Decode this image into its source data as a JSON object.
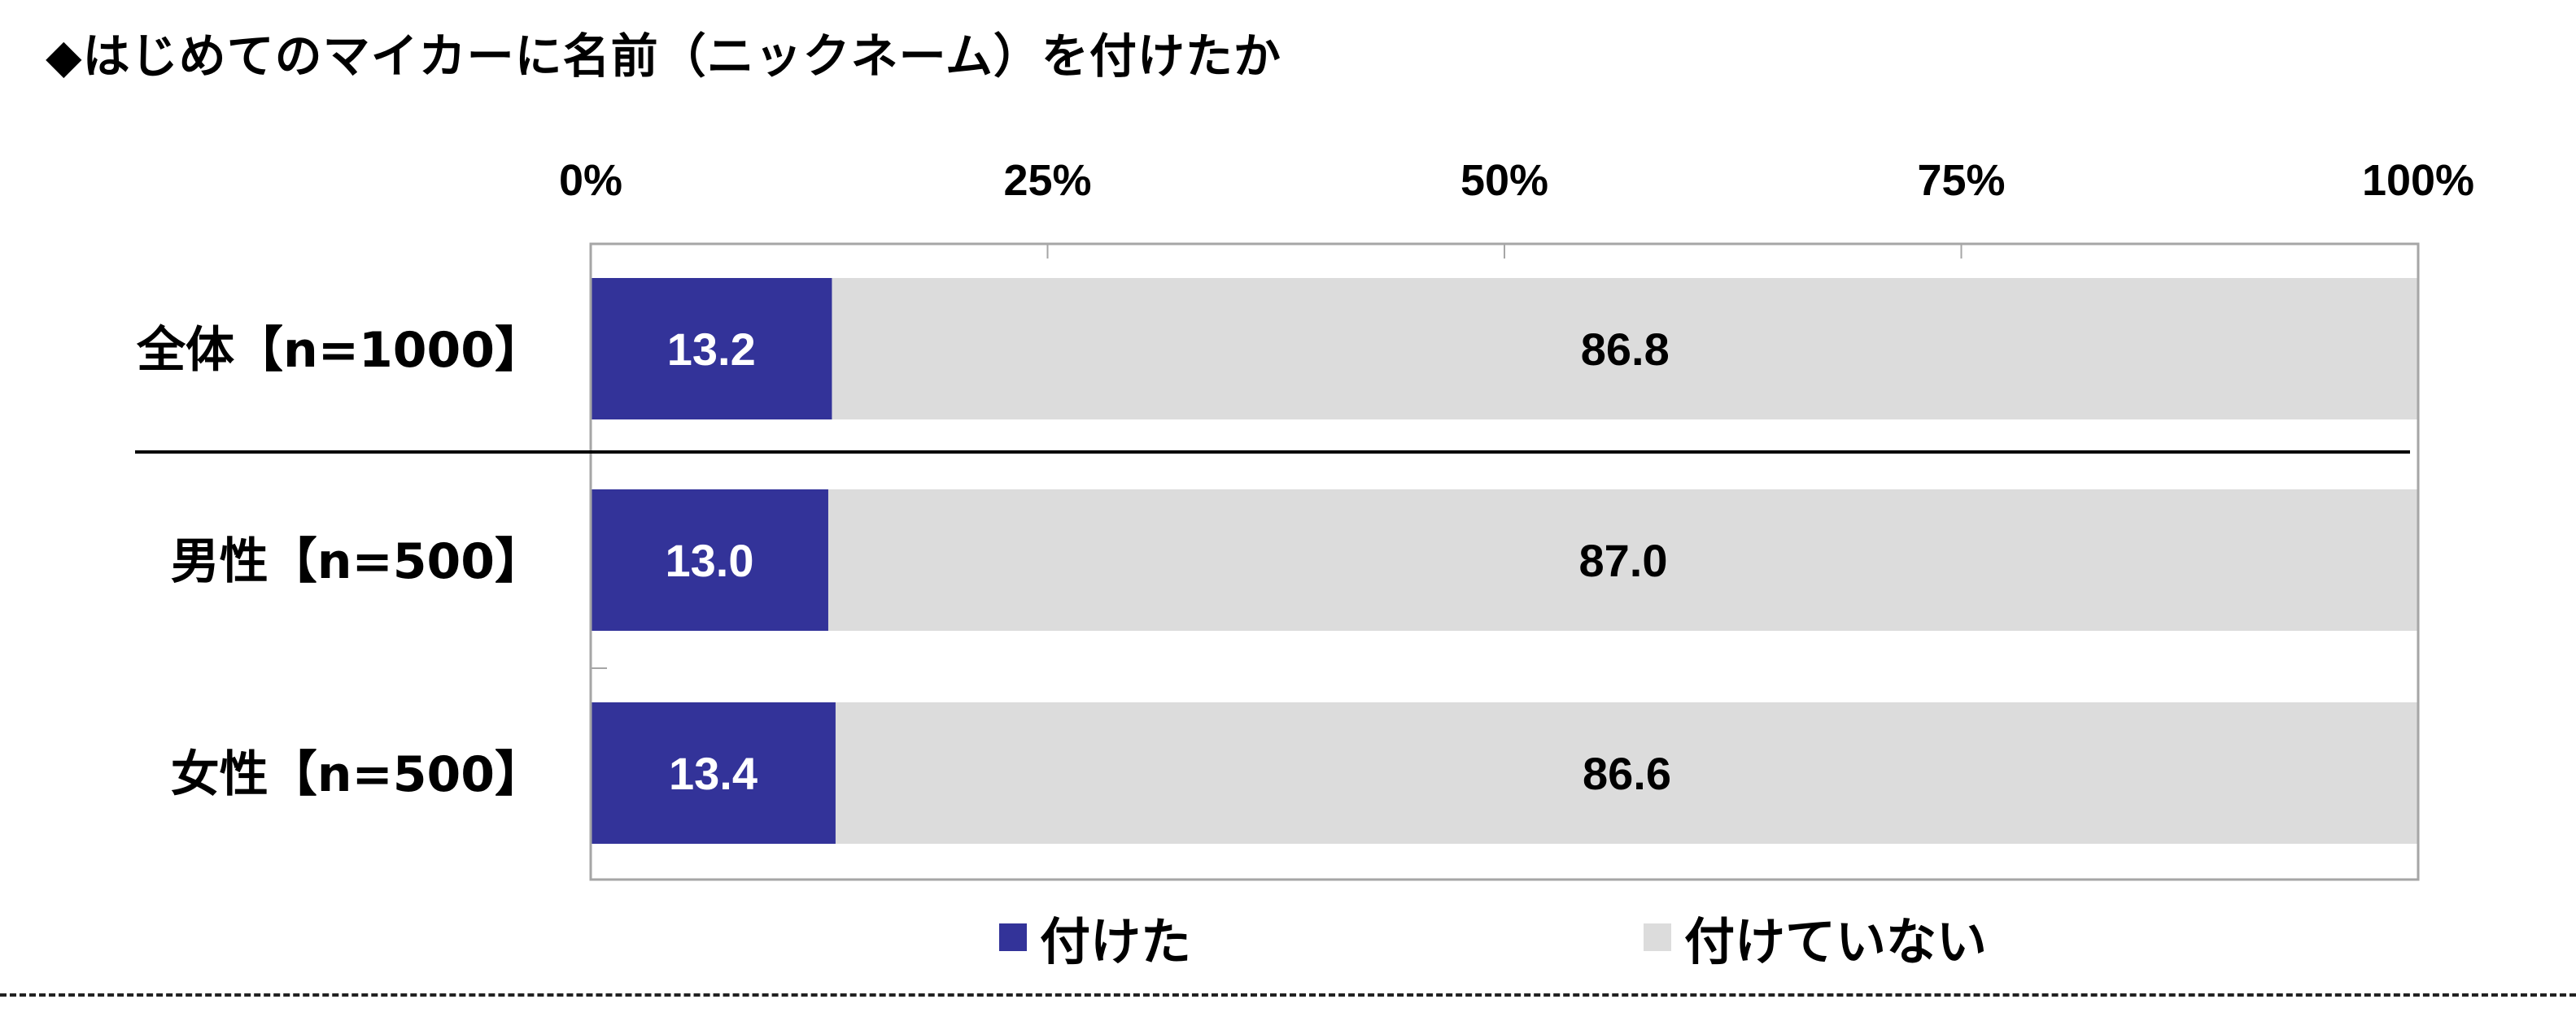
{
  "title": "◆はじめてのマイカーに名前（ニックネーム）を付けたか",
  "chart_data": {
    "type": "bar",
    "orientation": "horizontal",
    "stacked": true,
    "categories": [
      "全体【n=1000】",
      "男性【n=500】",
      "女性【n=500】"
    ],
    "series": [
      {
        "name": "付けた",
        "values": [
          13.2,
          13.0,
          13.4
        ],
        "color": "#333399"
      },
      {
        "name": "付けていない",
        "values": [
          86.8,
          87.0,
          86.6
        ],
        "color": "#dcdcdc"
      }
    ],
    "xlim": [
      0,
      100
    ],
    "x_ticks": [
      "0%",
      "25%",
      "50%",
      "75%",
      "100%"
    ],
    "grid": true,
    "legend_position": "bottom"
  },
  "colors": {
    "label_on_dark": "#ffffff",
    "label_on_light": "#000000",
    "divider": "#000000"
  }
}
